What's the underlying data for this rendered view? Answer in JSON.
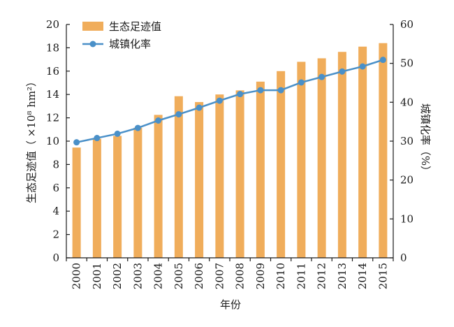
{
  "chart_data": {
    "type": "bar+line",
    "categories": [
      "2000",
      "2001",
      "2002",
      "2003",
      "2004",
      "2005",
      "2006",
      "2007",
      "2008",
      "2009",
      "2010",
      "2011",
      "2012",
      "2013",
      "2014",
      "2015"
    ],
    "series": [
      {
        "name": "生态足迹值",
        "type": "bar",
        "axis": "left",
        "color": "#f0ad5b",
        "values": [
          9.45,
          10.2,
          10.45,
          11.15,
          12.25,
          13.85,
          13.35,
          14.0,
          14.35,
          15.1,
          16.0,
          16.8,
          17.1,
          17.65,
          18.1,
          18.4
        ]
      },
      {
        "name": "城镇化率",
        "type": "line",
        "axis": "right",
        "color": "#4a90c8",
        "values": [
          29.7,
          30.8,
          31.9,
          33.4,
          35.3,
          36.9,
          38.6,
          40.4,
          42.1,
          43.1,
          43.1,
          45.1,
          46.5,
          47.9,
          49.2,
          50.9
        ]
      }
    ],
    "y_left": {
      "label": "生态足迹值（ ×10⁸ hm²）",
      "ylim": [
        0,
        20
      ],
      "ticks": [
        0,
        2,
        4,
        6,
        8,
        10,
        12,
        14,
        16,
        18,
        20
      ]
    },
    "y_right": {
      "label": "城镇化率（%）",
      "ylim": [
        0,
        60
      ],
      "ticks": [
        0,
        10,
        20,
        30,
        40,
        50,
        60
      ]
    },
    "x": {
      "label": "年份"
    },
    "grid": false,
    "legend_position": "top-left"
  }
}
